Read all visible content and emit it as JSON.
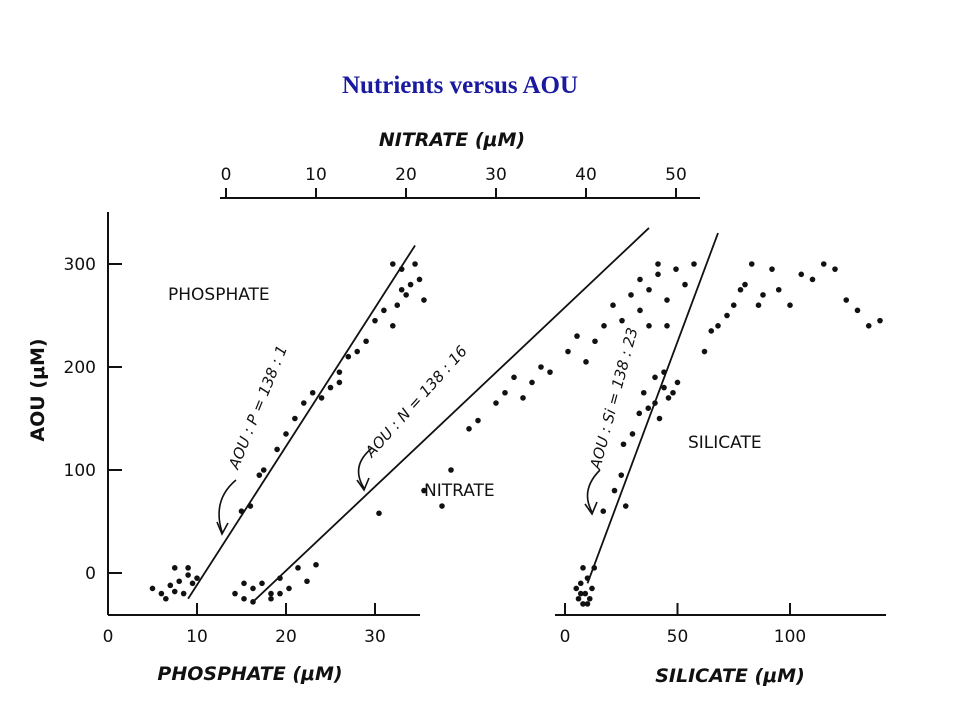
{
  "slide": {
    "title": "Nutrients versus AOU"
  },
  "chart_data": {
    "type": "scatter",
    "y_axis": {
      "label": "AOU (μM)",
      "ticks": [
        0,
        100,
        200,
        300
      ],
      "range": [
        -35,
        340
      ]
    },
    "panels": [
      {
        "name": "PHOSPHATE",
        "x_axis_label": "PHOSPHATE (μM)",
        "x_ticks": [
          0,
          10,
          20,
          30
        ],
        "x_range": [
          0,
          35
        ],
        "top_axis_label": "NITRATE (μM)",
        "top_ticks": [
          0,
          10,
          20,
          30,
          40,
          50
        ],
        "series": [
          {
            "name": "PHOSPHATE",
            "points": [
              [
                5,
                -15
              ],
              [
                6,
                -20
              ],
              [
                6.5,
                -25
              ],
              [
                7,
                -12
              ],
              [
                7.5,
                -18
              ],
              [
                8,
                -8
              ],
              [
                8.5,
                -20
              ],
              [
                9,
                -2
              ],
              [
                9.5,
                -10
              ],
              [
                7.5,
                5
              ],
              [
                9,
                5
              ],
              [
                10,
                -5
              ],
              [
                15,
                60
              ],
              [
                16,
                65
              ],
              [
                17,
                95
              ],
              [
                17.5,
                100
              ],
              [
                19,
                120
              ],
              [
                20,
                135
              ],
              [
                21,
                150
              ],
              [
                22,
                165
              ],
              [
                23,
                175
              ],
              [
                24,
                170
              ],
              [
                25,
                180
              ],
              [
                26,
                195
              ],
              [
                26,
                185
              ],
              [
                27,
                210
              ],
              [
                28,
                215
              ],
              [
                29,
                225
              ],
              [
                30,
                245
              ],
              [
                31,
                255
              ],
              [
                32,
                240
              ],
              [
                32.5,
                260
              ],
              [
                33,
                275
              ],
              [
                33,
                295
              ],
              [
                34,
                280
              ],
              [
                34.5,
                300
              ],
              [
                35,
                285
              ],
              [
                35.5,
                265
              ],
              [
                32,
                300
              ],
              [
                33.5,
                270
              ]
            ]
          },
          {
            "name": "NITRATE",
            "points": [
              [
                1,
                -20
              ],
              [
                2,
                -25
              ],
              [
                3,
                -15
              ],
              [
                4,
                -10
              ],
              [
                5,
                -20
              ],
              [
                6,
                -5
              ],
              [
                7,
                -15
              ],
              [
                8,
                5
              ],
              [
                9,
                -8
              ],
              [
                5,
                -25
              ],
              [
                3,
                -28
              ],
              [
                2,
                -10
              ],
              [
                6,
                -20
              ],
              [
                10,
                8
              ],
              [
                17,
                58
              ],
              [
                24,
                65
              ],
              [
                22,
                80
              ],
              [
                25,
                100
              ],
              [
                27,
                140
              ],
              [
                28,
                148
              ],
              [
                30,
                165
              ],
              [
                31,
                175
              ],
              [
                32,
                190
              ],
              [
                33,
                170
              ],
              [
                34,
                185
              ],
              [
                35,
                200
              ],
              [
                36,
                195
              ],
              [
                38,
                215
              ],
              [
                39,
                230
              ],
              [
                40,
                205
              ],
              [
                41,
                225
              ],
              [
                42,
                240
              ],
              [
                43,
                260
              ],
              [
                44,
                245
              ],
              [
                45,
                270
              ],
              [
                46,
                255
              ],
              [
                46,
                285
              ],
              [
                47,
                275
              ],
              [
                48,
                290
              ],
              [
                48,
                300
              ],
              [
                49,
                265
              ],
              [
                50,
                295
              ],
              [
                51,
                280
              ],
              [
                52,
                300
              ],
              [
                47,
                240
              ],
              [
                49,
                240
              ]
            ]
          }
        ],
        "annotations": [
          {
            "text": "PHOSPHATE"
          },
          {
            "text": "NITRATE"
          },
          {
            "text": "AOU : P = 138 : 1"
          },
          {
            "text": "AOU : N = 138 : 16"
          }
        ]
      },
      {
        "name": "SILICATE",
        "x_axis_label": "SILICATE (μM)",
        "x_ticks": [
          0,
          50,
          100
        ],
        "x_range": [
          0,
          145
        ],
        "series": [
          {
            "name": "SILICATE",
            "points": [
              [
                5,
                -15
              ],
              [
                6,
                -25
              ],
              [
                7,
                -10
              ],
              [
                8,
                -30
              ],
              [
                9,
                -20
              ],
              [
                10,
                -5
              ],
              [
                11,
                -25
              ],
              [
                12,
                -15
              ],
              [
                8,
                5
              ],
              [
                10,
                -30
              ],
              [
                13,
                5
              ],
              [
                7,
                -20
              ],
              [
                17,
                60
              ],
              [
                22,
                80
              ],
              [
                25,
                95
              ],
              [
                27,
                65
              ],
              [
                26,
                125
              ],
              [
                30,
                135
              ],
              [
                33,
                155
              ],
              [
                35,
                175
              ],
              [
                37,
                160
              ],
              [
                40,
                165
              ],
              [
                42,
                150
              ],
              [
                44,
                180
              ],
              [
                46,
                170
              ],
              [
                48,
                175
              ],
              [
                50,
                185
              ],
              [
                40,
                190
              ],
              [
                44,
                195
              ],
              [
                62,
                215
              ],
              [
                65,
                235
              ],
              [
                68,
                240
              ],
              [
                72,
                250
              ],
              [
                75,
                260
              ],
              [
                78,
                275
              ],
              [
                80,
                280
              ],
              [
                83,
                300
              ],
              [
                86,
                260
              ],
              [
                88,
                270
              ],
              [
                92,
                295
              ],
              [
                95,
                275
              ],
              [
                100,
                260
              ],
              [
                105,
                290
              ],
              [
                110,
                285
              ],
              [
                115,
                300
              ],
              [
                120,
                295
              ],
              [
                125,
                265
              ],
              [
                130,
                255
              ],
              [
                135,
                240
              ],
              [
                140,
                245
              ]
            ]
          }
        ],
        "annotations": [
          {
            "text": "SILICATE"
          },
          {
            "text": "AOU : Si = 138 : 23"
          }
        ]
      }
    ],
    "regression_lines": [
      {
        "name": "AOU:P = 138:1"
      },
      {
        "name": "AOU:N = 138:16"
      },
      {
        "name": "AOU:Si = 138:23"
      }
    ]
  }
}
